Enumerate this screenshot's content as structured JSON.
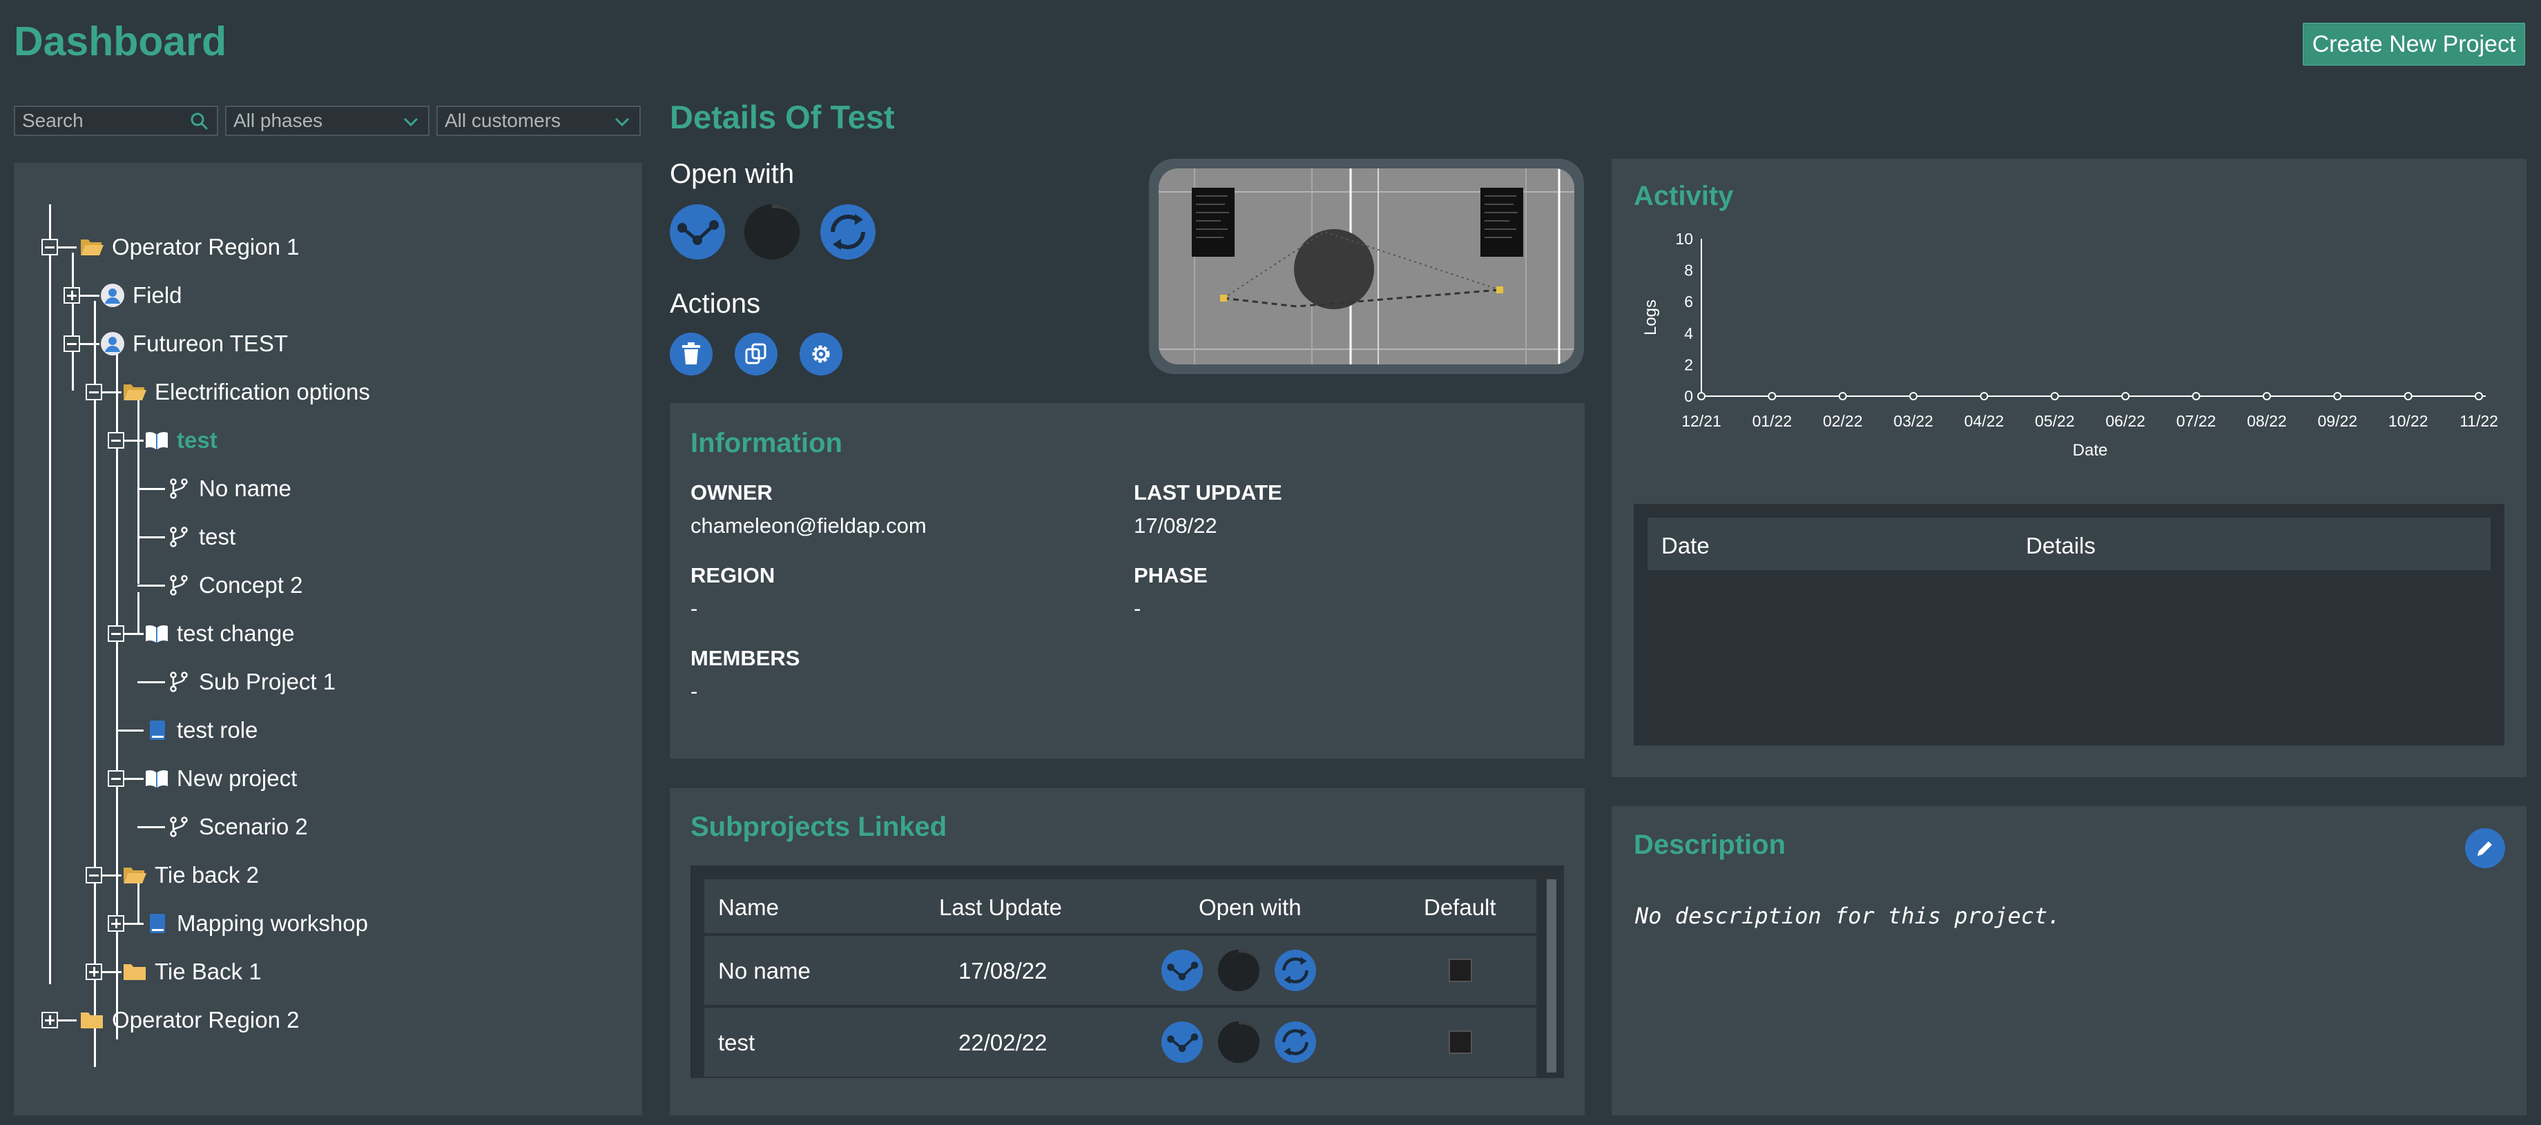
{
  "header": {
    "title": "Dashboard",
    "create_button": "Create New Project"
  },
  "filters": {
    "search_placeholder": "Search",
    "phase": "All phases",
    "customer": "All customers"
  },
  "tree": {
    "region1": "Operator Region 1",
    "field": "Field",
    "futureon": "Futureon TEST",
    "electrification": "Electrification options",
    "test": "test",
    "no_name": "No name",
    "test_sub": "test",
    "concept2": "Concept 2",
    "test_change": "test change",
    "sub_project1": "Sub Project 1",
    "test_role": "test role",
    "new_project": "New project",
    "scenario2": "Scenario 2",
    "tie_back2": "Tie back 2",
    "mapping": "Mapping workshop",
    "tie_back1": "Tie Back 1",
    "region2": "Operator Region 2"
  },
  "details": {
    "title": "Details Of Test",
    "open_with": "Open with",
    "actions": "Actions"
  },
  "information": {
    "title": "Information",
    "owner_label": "OWNER",
    "owner": "chameleon@fieldap.com",
    "last_update_label": "LAST UPDATE",
    "last_update": "17/08/22",
    "region_label": "REGION",
    "region": "-",
    "phase_label": "PHASE",
    "phase": "-",
    "members_label": "MEMBERS",
    "members": "-"
  },
  "subprojects": {
    "title": "Subprojects Linked",
    "columns": [
      "Name",
      "Last Update",
      "Open with",
      "Default"
    ],
    "rows": [
      {
        "name": "No name",
        "last_update": "17/08/22"
      },
      {
        "name": "test",
        "last_update": "22/02/22"
      }
    ]
  },
  "activity": {
    "title": "Activity",
    "table_columns": [
      "Date",
      "Details"
    ]
  },
  "chart_data": {
    "type": "line",
    "xlabel": "Date",
    "ylabel": "Logs",
    "categories": [
      "12/21",
      "01/22",
      "02/22",
      "03/22",
      "04/22",
      "05/22",
      "06/22",
      "07/22",
      "08/22",
      "09/22",
      "10/22",
      "11/22"
    ],
    "values": [
      0,
      0,
      0,
      0,
      0,
      0,
      0,
      0,
      0,
      0,
      0,
      0
    ],
    "yticks": [
      "0",
      "2",
      "4",
      "6",
      "8",
      "10"
    ],
    "ylim": [
      0,
      10
    ]
  },
  "description": {
    "title": "Description",
    "text": "No description for this project."
  },
  "colors": {
    "accent": "#3aa58c",
    "app_blue": "#2f72c4",
    "background": "#2e383f",
    "panel": "#3c474e"
  }
}
